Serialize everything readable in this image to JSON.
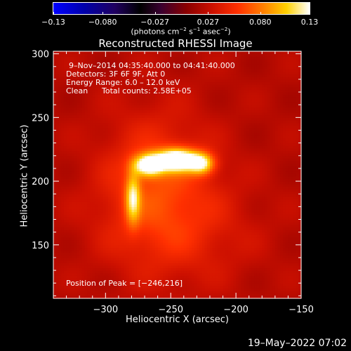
{
  "chart_data": {
    "type": "heatmap",
    "title": "Reconstructed RHESSI Image",
    "xlabel": "Heliocentric X (arcsec)",
    "ylabel": "Heliocentric Y (arcsec)",
    "xlim": [
      -340,
      -150
    ],
    "ylim": [
      108,
      302
    ],
    "x_ticks": [
      -300,
      -250,
      -200,
      -150
    ],
    "x_tick_labels": [
      "−300",
      "−250",
      "−200",
      "−150"
    ],
    "y_ticks": [
      150,
      200,
      250,
      300
    ],
    "y_tick_labels": [
      "150",
      "200",
      "250",
      "300"
    ],
    "colorbar": {
      "range": [
        -0.13,
        0.13
      ],
      "ticks": [
        -0.13,
        -0.08,
        -0.027,
        0.027,
        0.08,
        0.13
      ],
      "tick_labels": [
        "−0.13",
        "−0.080",
        "−0.027",
        "0.027",
        "0.080",
        "0.13"
      ],
      "unit_parts": [
        "(photons cm",
        "−2",
        " s",
        "−1",
        " asec",
        "−2",
        ")"
      ]
    },
    "annotations": {
      "time_range": "9–Nov–2014 04:35:40.000 to 04:41:40.000",
      "detectors": "Detectors: 3F 6F 9F, Att 0",
      "energy": "Energy Range: 6.0 – 12.0 keV",
      "method": "Clean",
      "counts": "Total counts: 2.58E+05",
      "peak": "Position of Peak = [−246,216]"
    },
    "peak": {
      "x": -246,
      "y": 216
    },
    "sources": [
      {
        "x": -246,
        "y": 216,
        "sx": 11,
        "sy": 6,
        "amp": 0.13
      },
      {
        "x": -268,
        "y": 212,
        "sx": 8,
        "sy": 6,
        "amp": 0.105
      },
      {
        "x": -227,
        "y": 213,
        "sx": 7,
        "sy": 6,
        "amp": 0.08
      },
      {
        "x": -280,
        "y": 186,
        "sx": 4,
        "sy": 14,
        "amp": 0.07
      },
      {
        "x": -262,
        "y": 200,
        "sx": 30,
        "sy": 38,
        "amp": 0.035
      },
      {
        "x": -245,
        "y": 160,
        "sx": 40,
        "sy": 30,
        "amp": 0.02
      }
    ]
  },
  "footer": {
    "timestamp": "19–May–2022 07:02"
  }
}
